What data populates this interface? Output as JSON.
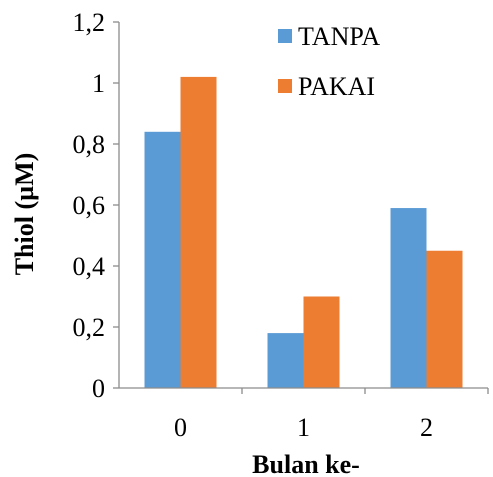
{
  "chart_data": {
    "type": "bar",
    "categories": [
      "0",
      "1",
      "2"
    ],
    "series": [
      {
        "name": "TANPA",
        "values": [
          0.84,
          0.18,
          0.59
        ],
        "color": "#5b9bd5"
      },
      {
        "name": "PAKAI",
        "values": [
          1.02,
          0.3,
          0.45
        ],
        "color": "#ed7d31"
      }
    ],
    "xlabel": "Bulan ke-",
    "ylabel": "Thiol (µM)",
    "ylim": [
      0,
      1.2
    ],
    "yticks": [
      "0",
      "0,2",
      "0,4",
      "0,6",
      "0,8",
      "1",
      "1,2"
    ],
    "grid": false,
    "legend_position": "top-right"
  }
}
